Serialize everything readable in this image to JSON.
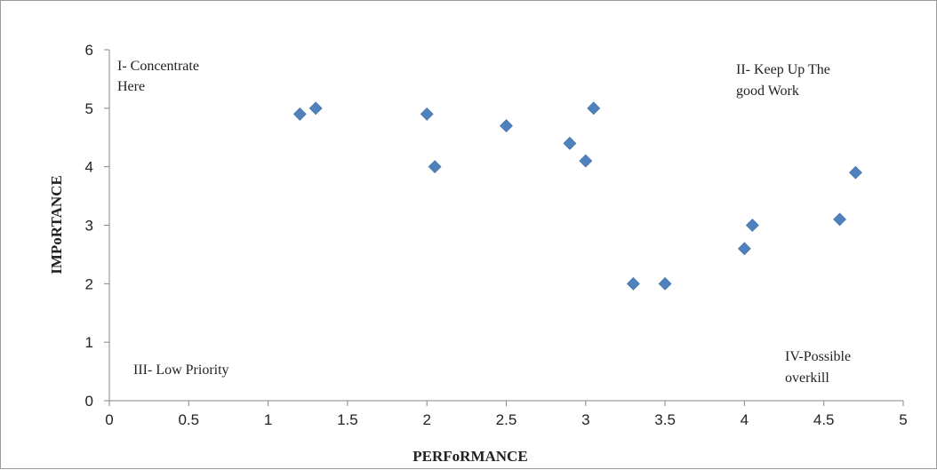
{
  "chart_data": {
    "type": "scatter",
    "xlabel": "PERFoRMANCE",
    "ylabel": "IMPoRTANCE",
    "xlim": [
      0,
      5
    ],
    "ylim": [
      0,
      6
    ],
    "xticks": [
      "0",
      "0.5",
      "1",
      "1.5",
      "2",
      "2.5",
      "3",
      "3.5",
      "4",
      "4.5",
      "5"
    ],
    "yticks": [
      "0",
      "1",
      "2",
      "3",
      "4",
      "5",
      "6"
    ],
    "grid": false,
    "legend": "none",
    "marker": "diamond",
    "marker_color": "#4F81BD",
    "series": [
      {
        "points": [
          {
            "x": 1.2,
            "y": 4.9
          },
          {
            "x": 1.3,
            "y": 5.0
          },
          {
            "x": 2.0,
            "y": 4.9
          },
          {
            "x": 2.05,
            "y": 4.0
          },
          {
            "x": 2.5,
            "y": 4.7
          },
          {
            "x": 2.9,
            "y": 4.4
          },
          {
            "x": 3.0,
            "y": 4.1
          },
          {
            "x": 3.05,
            "y": 5.0
          },
          {
            "x": 3.3,
            "y": 2.0
          },
          {
            "x": 3.5,
            "y": 2.0
          },
          {
            "x": 4.0,
            "y": 2.6
          },
          {
            "x": 4.05,
            "y": 3.0
          },
          {
            "x": 4.6,
            "y": 3.1
          },
          {
            "x": 4.7,
            "y": 3.9
          }
        ]
      }
    ],
    "annotations": [
      {
        "lines": [
          "I- Concentrate",
          "Here"
        ],
        "position": "top-left"
      },
      {
        "lines": [
          "II- Keep Up The",
          "good Work"
        ],
        "position": "top-right"
      },
      {
        "lines": [
          "III- Low Priority"
        ],
        "position": "bottom-left"
      },
      {
        "lines": [
          "IV-Possible",
          "overkill"
        ],
        "position": "bottom-right"
      }
    ]
  }
}
